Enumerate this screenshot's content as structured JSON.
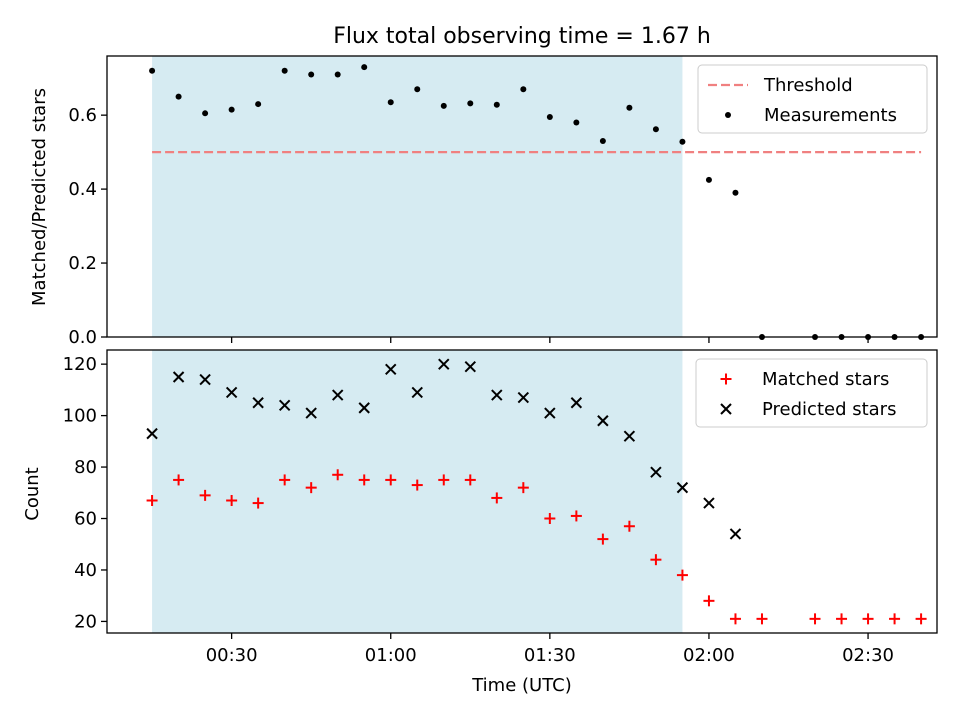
{
  "chart_data": [
    {
      "type": "scatter",
      "title": "Flux total observing time = 1.67 h",
      "xlabel": "",
      "ylabel": "Matched/Predicted stars",
      "ylim": [
        0,
        0.76
      ],
      "yticks": [
        "0.0",
        "0.2",
        "0.4",
        "0.6"
      ],
      "ytick_values": [
        0,
        0.2,
        0.4,
        0.6
      ],
      "xlim_minutes": [
        6.5,
        163
      ],
      "shaded_span_minutes": [
        15,
        115
      ],
      "threshold": {
        "name": "Threshold",
        "value": 0.5,
        "x_from_minutes": 15,
        "x_to_minutes": 160,
        "color": "#f08080"
      },
      "legend": {
        "position": "upper right",
        "entries": [
          "Threshold",
          "Measurements"
        ]
      },
      "series": [
        {
          "name": "Measurements",
          "color": "#000000",
          "x_minutes": [
            15,
            20,
            25,
            30,
            35,
            40,
            45,
            50,
            55,
            60,
            65,
            70,
            75,
            80,
            85,
            90,
            95,
            100,
            105,
            110,
            115,
            120,
            125,
            130,
            140,
            145,
            150,
            155,
            160
          ],
          "y": [
            0.72,
            0.65,
            0.605,
            0.615,
            0.63,
            0.72,
            0.71,
            0.71,
            0.73,
            0.635,
            0.67,
            0.625,
            0.632,
            0.628,
            0.67,
            0.595,
            0.58,
            0.53,
            0.62,
            0.562,
            0.528,
            0.425,
            0.39,
            0,
            0,
            0,
            0,
            0,
            0
          ]
        }
      ]
    },
    {
      "type": "scatter",
      "xlabel": "Time (UTC)",
      "ylabel": "Count",
      "ylim": [
        15.5,
        125.5
      ],
      "yticks": [
        "20",
        "40",
        "60",
        "80",
        "100",
        "120"
      ],
      "ytick_values": [
        20,
        40,
        60,
        80,
        100,
        120
      ],
      "xlim_minutes": [
        6.5,
        163
      ],
      "xticks": [
        "00:30",
        "01:00",
        "01:30",
        "02:00",
        "02:30"
      ],
      "xtick_minutes": [
        30,
        60,
        90,
        120,
        150
      ],
      "shaded_span_minutes": [
        15,
        115
      ],
      "legend": {
        "position": "upper right",
        "entries": [
          "Matched stars",
          "Predicted stars"
        ]
      },
      "series": [
        {
          "name": "Matched stars",
          "marker": "+",
          "color": "#ff0000",
          "x_minutes": [
            15,
            20,
            25,
            30,
            35,
            40,
            45,
            50,
            55,
            60,
            65,
            70,
            75,
            80,
            85,
            90,
            95,
            100,
            105,
            110,
            115,
            120,
            125,
            130,
            140,
            145,
            150,
            155,
            160
          ],
          "y": [
            67,
            75,
            69,
            67,
            66,
            75,
            72,
            77,
            75,
            75,
            73,
            75,
            75,
            68,
            72,
            60,
            61,
            52,
            57,
            44,
            38,
            28,
            21,
            21,
            21,
            21,
            21,
            21,
            21
          ]
        },
        {
          "name": "Predicted stars",
          "marker": "x",
          "color": "#000000",
          "x_minutes": [
            15,
            20,
            25,
            30,
            35,
            40,
            45,
            50,
            55,
            60,
            65,
            70,
            75,
            80,
            85,
            90,
            95,
            100,
            105,
            110,
            115,
            120,
            125
          ],
          "y": [
            93,
            115,
            114,
            109,
            105,
            104,
            101,
            108,
            103,
            118,
            109,
            120,
            119,
            108,
            107,
            101,
            105,
            98,
            92,
            78,
            72,
            66,
            54
          ]
        }
      ]
    }
  ],
  "colors": {
    "shade": "#add8e6",
    "threshold": "#f08080",
    "matched": "#ff0000",
    "predicted": "#000000"
  }
}
